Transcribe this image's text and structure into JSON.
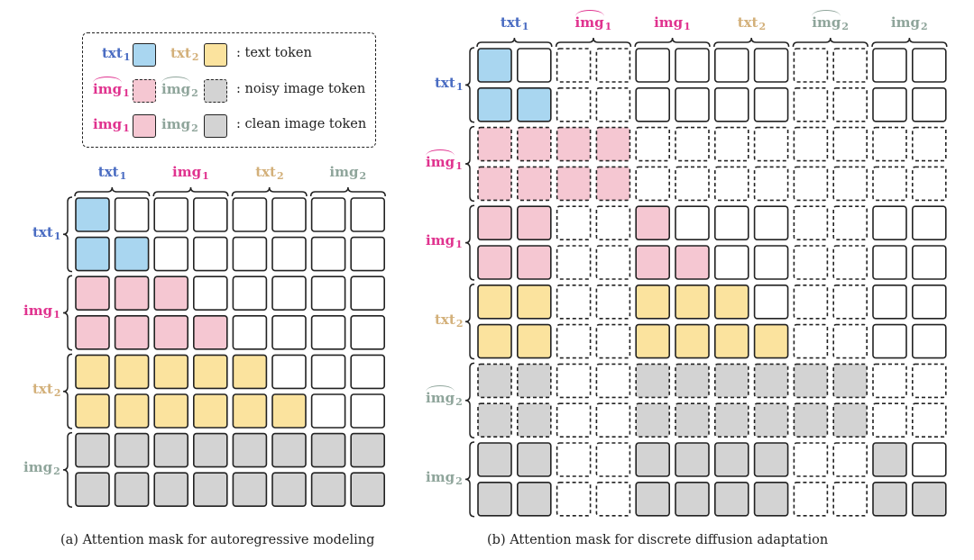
{
  "colors": {
    "txt1": "#4a6cc2",
    "txt2": "#d3b07a",
    "img1": "#e0338f",
    "img2": "#8fa59b",
    "fill_blue": "#a9d6f0",
    "fill_pink": "#f5c7d2",
    "fill_yellow": "#fbe39e",
    "fill_gray": "#d3d3d3",
    "stroke": "#222222"
  },
  "legend": {
    "rows": [
      {
        "items": [
          {
            "base": "txt",
            "sub": "1",
            "hat": false,
            "color_key": "txt1",
            "fill": "fill_blue",
            "dashed": false
          },
          {
            "base": "txt",
            "sub": "2",
            "hat": false,
            "color_key": "txt2",
            "fill": "fill_yellow",
            "dashed": false
          }
        ],
        "text": ": text token"
      },
      {
        "items": [
          {
            "base": "img",
            "sub": "1",
            "hat": true,
            "color_key": "img1",
            "fill": "fill_pink",
            "dashed": true
          },
          {
            "base": "img",
            "sub": "2",
            "hat": true,
            "color_key": "img2",
            "fill": "fill_gray",
            "dashed": true
          }
        ],
        "text": ": noisy image token"
      },
      {
        "items": [
          {
            "base": "img",
            "sub": "1",
            "hat": false,
            "color_key": "img1",
            "fill": "fill_pink",
            "dashed": false
          },
          {
            "base": "img",
            "sub": "2",
            "hat": false,
            "color_key": "img2",
            "fill": "fill_gray",
            "dashed": false
          }
        ],
        "text": ": clean image token"
      }
    ]
  },
  "panel_a": {
    "caption": "(a) Attention mask for autoregressive modeling",
    "groups": [
      {
        "base": "txt",
        "sub": "1",
        "hat": false,
        "color_key": "txt1"
      },
      {
        "base": "img",
        "sub": "1",
        "hat": false,
        "color_key": "img1"
      },
      {
        "base": "txt",
        "sub": "2",
        "hat": false,
        "color_key": "txt2"
      },
      {
        "base": "img",
        "sub": "2",
        "hat": false,
        "color_key": "img2"
      }
    ],
    "matrix": [
      [
        "B",
        "W",
        "W",
        "W",
        "W",
        "W",
        "W",
        "W"
      ],
      [
        "B",
        "B",
        "W",
        "W",
        "W",
        "W",
        "W",
        "W"
      ],
      [
        "P",
        "P",
        "P",
        "W",
        "W",
        "W",
        "W",
        "W"
      ],
      [
        "P",
        "P",
        "P",
        "P",
        "W",
        "W",
        "W",
        "W"
      ],
      [
        "Y",
        "Y",
        "Y",
        "Y",
        "Y",
        "W",
        "W",
        "W"
      ],
      [
        "Y",
        "Y",
        "Y",
        "Y",
        "Y",
        "Y",
        "W",
        "W"
      ],
      [
        "G",
        "G",
        "G",
        "G",
        "G",
        "G",
        "G",
        "G"
      ],
      [
        "G",
        "G",
        "G",
        "G",
        "G",
        "G",
        "G",
        "G"
      ]
    ],
    "dashed_rows": [],
    "dashed_cols": []
  },
  "panel_b": {
    "caption": "(b) Attention mask for discrete diffusion adaptation",
    "groups": [
      {
        "base": "txt",
        "sub": "1",
        "hat": false,
        "color_key": "txt1"
      },
      {
        "base": "img",
        "sub": "1",
        "hat": true,
        "color_key": "img1"
      },
      {
        "base": "img",
        "sub": "1",
        "hat": false,
        "color_key": "img1"
      },
      {
        "base": "txt",
        "sub": "2",
        "hat": false,
        "color_key": "txt2"
      },
      {
        "base": "img",
        "sub": "2",
        "hat": true,
        "color_key": "img2"
      },
      {
        "base": "img",
        "sub": "2",
        "hat": false,
        "color_key": "img2"
      }
    ],
    "matrix": [
      [
        "B",
        "W",
        "W",
        "W",
        "W",
        "W",
        "W",
        "W",
        "W",
        "W",
        "W",
        "W"
      ],
      [
        "B",
        "B",
        "W",
        "W",
        "W",
        "W",
        "W",
        "W",
        "W",
        "W",
        "W",
        "W"
      ],
      [
        "P",
        "P",
        "P",
        "P",
        "W",
        "W",
        "W",
        "W",
        "W",
        "W",
        "W",
        "W"
      ],
      [
        "P",
        "P",
        "P",
        "P",
        "W",
        "W",
        "W",
        "W",
        "W",
        "W",
        "W",
        "W"
      ],
      [
        "P",
        "P",
        "W",
        "W",
        "P",
        "W",
        "W",
        "W",
        "W",
        "W",
        "W",
        "W"
      ],
      [
        "P",
        "P",
        "W",
        "W",
        "P",
        "P",
        "W",
        "W",
        "W",
        "W",
        "W",
        "W"
      ],
      [
        "Y",
        "Y",
        "W",
        "W",
        "Y",
        "Y",
        "Y",
        "W",
        "W",
        "W",
        "W",
        "W"
      ],
      [
        "Y",
        "Y",
        "W",
        "W",
        "Y",
        "Y",
        "Y",
        "Y",
        "W",
        "W",
        "W",
        "W"
      ],
      [
        "G",
        "G",
        "W",
        "W",
        "G",
        "G",
        "G",
        "G",
        "G",
        "G",
        "W",
        "W"
      ],
      [
        "G",
        "G",
        "W",
        "W",
        "G",
        "G",
        "G",
        "G",
        "G",
        "G",
        "W",
        "W"
      ],
      [
        "G",
        "G",
        "W",
        "W",
        "G",
        "G",
        "G",
        "G",
        "W",
        "W",
        "G",
        "W"
      ],
      [
        "G",
        "G",
        "W",
        "W",
        "G",
        "G",
        "G",
        "G",
        "W",
        "W",
        "G",
        "G"
      ]
    ],
    "dashed_rows": [
      2,
      3,
      8,
      9
    ],
    "dashed_cols": [
      2,
      3,
      8,
      9
    ]
  }
}
